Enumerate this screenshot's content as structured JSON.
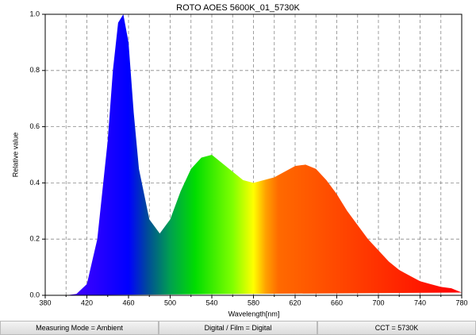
{
  "chart_data": {
    "type": "area",
    "title": "ROTO AOES 5600K_01_5730K",
    "xlabel": "Wavelength[nm]",
    "ylabel": "Relative value",
    "x": [
      380,
      390,
      400,
      410,
      420,
      430,
      440,
      445,
      450,
      455,
      460,
      465,
      470,
      480,
      490,
      500,
      510,
      520,
      530,
      540,
      550,
      560,
      570,
      580,
      590,
      600,
      610,
      620,
      630,
      640,
      650,
      660,
      670,
      680,
      690,
      700,
      710,
      720,
      730,
      740,
      750,
      760,
      770,
      780
    ],
    "values": [
      0,
      0,
      0,
      0.005,
      0.04,
      0.2,
      0.55,
      0.8,
      0.97,
      1.0,
      0.9,
      0.65,
      0.45,
      0.27,
      0.22,
      0.27,
      0.37,
      0.45,
      0.49,
      0.5,
      0.47,
      0.44,
      0.41,
      0.4,
      0.41,
      0.42,
      0.44,
      0.46,
      0.465,
      0.45,
      0.41,
      0.36,
      0.3,
      0.25,
      0.2,
      0.16,
      0.12,
      0.09,
      0.07,
      0.05,
      0.04,
      0.03,
      0.025,
      0.01
    ],
    "xlim": [
      380,
      780
    ],
    "xticks": [
      380,
      420,
      460,
      500,
      540,
      580,
      620,
      660,
      700,
      740,
      780
    ],
    "xminor": [
      400,
      440,
      480,
      520,
      560,
      600,
      640,
      680,
      720,
      760
    ],
    "ylim": [
      0,
      1
    ],
    "yticks": [
      {
        "value": 0,
        "label": "0.0"
      },
      0.2,
      0.4,
      0.6,
      0.8,
      {
        "value": 1,
        "label": "1.0"
      }
    ],
    "grid": true
  },
  "footer": [
    "Measuring Mode = Ambient",
    "Digital / Film = Digital",
    "CCT = 5730K"
  ]
}
